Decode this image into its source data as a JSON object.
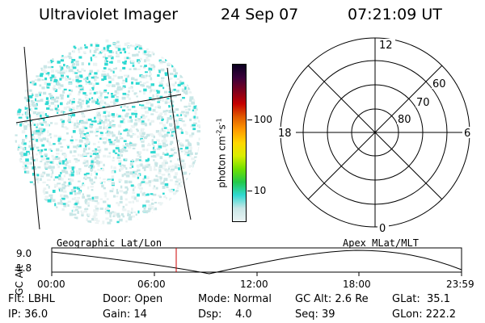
{
  "header": {
    "title": "Ultraviolet Imager",
    "date": "24 Sep 07",
    "time": "07:21:09 UT"
  },
  "imager": {
    "left_label": "Geographic Lat/Lon",
    "right_label": "Apex MLat/MLT",
    "colorbar_unit": "photon cm^-2 s^-1",
    "colorbar_ticks": [
      "100",
      "10"
    ],
    "colorbar_scale": "log",
    "colormap": [
      "#eaf3f3",
      "#c8e6e6",
      "#2fd9d2",
      "#22c94a",
      "#6fe000",
      "#d9ee00",
      "#ffd700",
      "#ff9a00",
      "#e05a00",
      "#c40000",
      "#7d001d",
      "#3a003a",
      "#0a0020"
    ]
  },
  "polar_plot": {
    "mlt_labels": {
      "top": "12",
      "right": "6",
      "bottom": "0",
      "left": "18"
    },
    "lat_labels": [
      "60",
      "70",
      "80"
    ]
  },
  "altitude_plot": {
    "ylabel": "GC Alt",
    "yticks": [
      "9.0",
      "1.8"
    ],
    "xticks": [
      "00:00",
      "06:00",
      "12:00",
      "18:00",
      "23:59"
    ],
    "current_time_color": "#cc0000"
  },
  "info": {
    "rows": [
      [
        "Flt: LBHL",
        "Door: Open",
        "Mode: Normal",
        "GC Alt: 2.6 Re",
        "GLat:  35.1"
      ],
      [
        "IP: 36.0",
        "Gain: 14",
        "Dsp:    4.0",
        "Seq: 39",
        "GLon: 222.2"
      ]
    ]
  }
}
